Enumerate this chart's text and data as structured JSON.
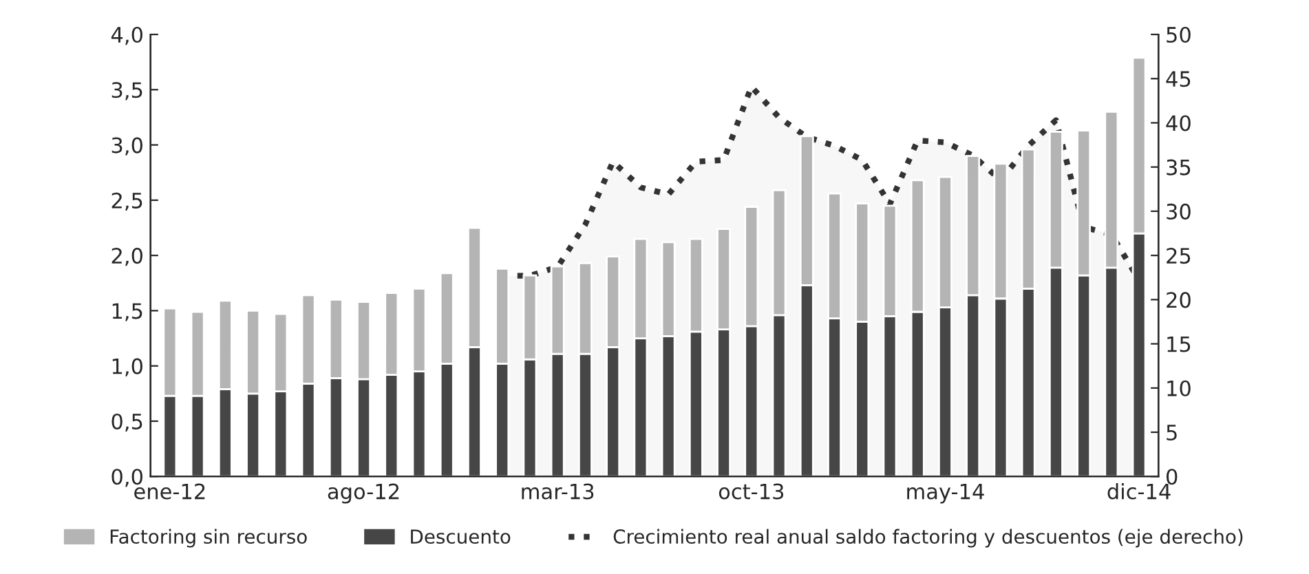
{
  "chart_data": {
    "type": "bar",
    "stacked": true,
    "categories": [
      "ene-12",
      null,
      null,
      null,
      null,
      null,
      null,
      "ago-12",
      null,
      null,
      null,
      null,
      null,
      null,
      "mar-13",
      null,
      null,
      null,
      null,
      null,
      null,
      "oct-13",
      null,
      null,
      null,
      null,
      null,
      null,
      "may-14",
      null,
      null,
      null,
      null,
      null,
      null,
      "dic-14"
    ],
    "series": [
      {
        "name": "Descuento",
        "color": "#464646",
        "values": [
          0.73,
          0.73,
          0.79,
          0.75,
          0.77,
          0.84,
          0.89,
          0.88,
          0.92,
          0.95,
          1.02,
          1.17,
          1.02,
          1.06,
          1.11,
          1.11,
          1.17,
          1.25,
          1.27,
          1.31,
          1.33,
          1.36,
          1.46,
          1.73,
          1.43,
          1.4,
          1.45,
          1.49,
          1.53,
          1.64,
          1.61,
          1.7,
          1.89,
          1.82,
          1.89,
          2.2
        ]
      },
      {
        "name": "Factoring sin recurso",
        "color": "#b4b4b4",
        "values": [
          0.79,
          0.76,
          0.8,
          0.75,
          0.7,
          0.8,
          0.71,
          0.7,
          0.74,
          0.75,
          0.82,
          1.08,
          0.86,
          0.76,
          0.79,
          0.82,
          0.82,
          0.9,
          0.85,
          0.84,
          0.91,
          1.08,
          1.13,
          1.35,
          1.13,
          1.07,
          1.0,
          1.19,
          1.18,
          1.26,
          1.22,
          1.26,
          1.23,
          1.31,
          1.41,
          1.59
        ]
      },
      {
        "name": "Crecimiento real anual saldo factoring y descuentos (eje derecho)",
        "type": "area",
        "axis": "y2",
        "color": "#333333",
        "line_style": "dotted",
        "values": [
          null,
          null,
          null,
          null,
          null,
          null,
          null,
          null,
          null,
          null,
          null,
          null,
          22.7,
          22.7,
          23.7,
          28.5,
          35.6,
          32.7,
          31.9,
          35.6,
          35.8,
          44.1,
          40.6,
          38.4,
          37.4,
          35.8,
          30.8,
          38.0,
          37.8,
          36.3,
          33.5,
          37.4,
          40.3,
          28.2,
          27.4,
          22.2
        ]
      }
    ],
    "ylim": [
      0,
      4
    ],
    "yticks": [
      {
        "value": 0,
        "label": "0,0"
      },
      {
        "value": 0.5,
        "label": "0,5"
      },
      {
        "value": 1,
        "label": "1,0"
      },
      {
        "value": 1.5,
        "label": "1,5"
      },
      {
        "value": 2,
        "label": "2,0"
      },
      {
        "value": 2.5,
        "label": "2,5"
      },
      {
        "value": 3,
        "label": "3,0"
      },
      {
        "value": 3.5,
        "label": "3,5"
      },
      {
        "value": 4,
        "label": "4,0"
      }
    ],
    "y2lim": [
      0,
      50
    ],
    "y2ticks": [
      0,
      5,
      10,
      15,
      20,
      25,
      30,
      35,
      40,
      45,
      50
    ],
    "grid": false,
    "legend": "bottom"
  }
}
